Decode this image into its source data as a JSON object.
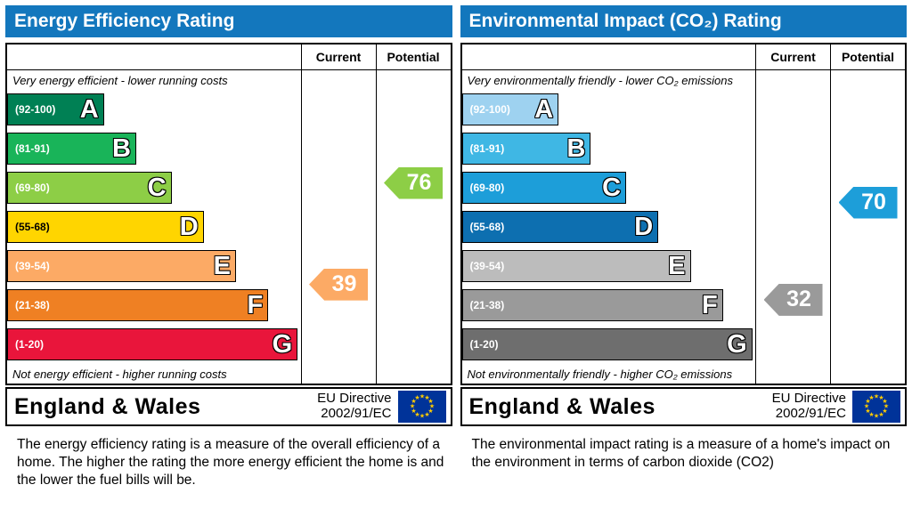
{
  "chart_data": [
    {
      "type": "bar",
      "title": "Energy Efficiency Rating",
      "scale_min": 1,
      "scale_max": 100,
      "columns": {
        "current": "Current",
        "potential": "Potential"
      },
      "top_caption": "Very energy efficient - lower running costs",
      "bottom_caption": "Not energy efficient - higher running costs",
      "bands": [
        {
          "letter": "A",
          "range": "(92-100)",
          "min": 92,
          "max": 100,
          "color": "#008054",
          "width_pct": 33,
          "range_text_color": "#ffffff"
        },
        {
          "letter": "B",
          "range": "(81-91)",
          "min": 81,
          "max": 91,
          "color": "#19b459",
          "width_pct": 44,
          "range_text_color": "#ffffff"
        },
        {
          "letter": "C",
          "range": "(69-80)",
          "min": 69,
          "max": 80,
          "color": "#8dce46",
          "width_pct": 56,
          "range_text_color": "#ffffff"
        },
        {
          "letter": "D",
          "range": "(55-68)",
          "min": 55,
          "max": 68,
          "color": "#ffd500",
          "width_pct": 67,
          "range_text_color": "#000000"
        },
        {
          "letter": "E",
          "range": "(39-54)",
          "min": 39,
          "max": 54,
          "color": "#fcaa65",
          "width_pct": 78,
          "range_text_color": "#ffffff"
        },
        {
          "letter": "F",
          "range": "(21-38)",
          "min": 21,
          "max": 38,
          "color": "#ef8023",
          "width_pct": 89,
          "range_text_color": "#ffffff"
        },
        {
          "letter": "G",
          "range": "(1-20)",
          "min": 1,
          "max": 20,
          "color": "#e9153b",
          "width_pct": 99,
          "range_text_color": "#ffffff"
        }
      ],
      "current": {
        "value": 39,
        "color": "#fcaa65"
      },
      "potential": {
        "value": 76,
        "color": "#8dce46"
      },
      "footer": {
        "region": "England & Wales",
        "directive": [
          "EU Directive",
          "2002/91/EC"
        ]
      },
      "description": "The energy efficiency rating is a measure of the overall efficiency of a home.  The higher the rating the more energy efficient the home is and the lower the fuel bills will be."
    },
    {
      "type": "bar",
      "title": "Environmental Impact (CO₂) Rating",
      "scale_min": 1,
      "scale_max": 100,
      "columns": {
        "current": "Current",
        "potential": "Potential"
      },
      "top_caption": "Very environmentally friendly - lower CO₂ emissions",
      "bottom_caption": "Not environmentally friendly - higher CO₂ emissions",
      "bands": [
        {
          "letter": "A",
          "range": "(92-100)",
          "min": 92,
          "max": 100,
          "color": "#9ed2f0",
          "width_pct": 33,
          "range_text_color": "#ffffff"
        },
        {
          "letter": "B",
          "range": "(81-91)",
          "min": 81,
          "max": 91,
          "color": "#3fb7e4",
          "width_pct": 44,
          "range_text_color": "#ffffff"
        },
        {
          "letter": "C",
          "range": "(69-80)",
          "min": 69,
          "max": 80,
          "color": "#1d9ed9",
          "width_pct": 56,
          "range_text_color": "#ffffff"
        },
        {
          "letter": "D",
          "range": "(55-68)",
          "min": 55,
          "max": 68,
          "color": "#0d6fb0",
          "width_pct": 67,
          "range_text_color": "#ffffff"
        },
        {
          "letter": "E",
          "range": "(39-54)",
          "min": 39,
          "max": 54,
          "color": "#bcbcbc",
          "width_pct": 78,
          "range_text_color": "#ffffff"
        },
        {
          "letter": "F",
          "range": "(21-38)",
          "min": 21,
          "max": 38,
          "color": "#9a9a9a",
          "width_pct": 89,
          "range_text_color": "#ffffff"
        },
        {
          "letter": "G",
          "range": "(1-20)",
          "min": 1,
          "max": 20,
          "color": "#6e6e6e",
          "width_pct": 99,
          "range_text_color": "#ffffff"
        }
      ],
      "current": {
        "value": 32,
        "color": "#9a9a9a"
      },
      "potential": {
        "value": 70,
        "color": "#1d9ed9"
      },
      "footer": {
        "region": "England & Wales",
        "directive": [
          "EU Directive",
          "2002/91/EC"
        ]
      },
      "description": "The environmental impact rating is a measure of a home's impact on the environment in terms of carbon dioxide (CO2)"
    }
  ]
}
